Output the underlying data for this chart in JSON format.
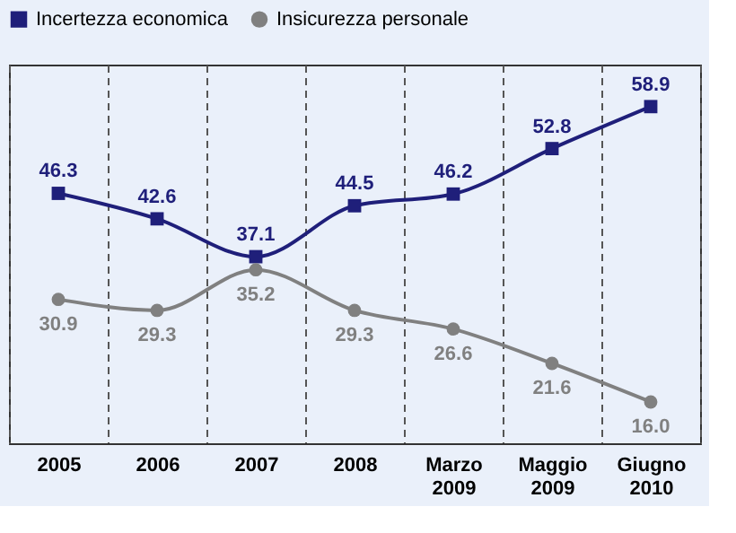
{
  "chart_data": {
    "type": "line",
    "categories": [
      "2005",
      "2006",
      "2007",
      "2008",
      "Marzo 2009",
      "Maggio 2009",
      "Giugno 2010"
    ],
    "series": [
      {
        "name": "Incertezza economica",
        "color": "#1f1f7a",
        "marker": "square",
        "values": [
          46.3,
          42.6,
          37.1,
          44.5,
          46.2,
          52.8,
          58.9
        ],
        "value_labels": [
          "46.3",
          "42.6",
          "37.1",
          "44.5",
          "46.2",
          "52.8",
          "58.9"
        ]
      },
      {
        "name": "Insicurezza personale",
        "color": "#808080",
        "marker": "circle",
        "values": [
          30.9,
          29.3,
          35.2,
          29.3,
          26.6,
          21.6,
          16.0
        ],
        "value_labels": [
          "30.9",
          "29.3",
          "35.2",
          "29.3",
          "26.6",
          "21.6",
          "16.0"
        ]
      }
    ],
    "ylim": [
      10,
      65
    ],
    "tick_labels": "x",
    "grid": "x",
    "legend": "top",
    "line_style": "solid"
  }
}
